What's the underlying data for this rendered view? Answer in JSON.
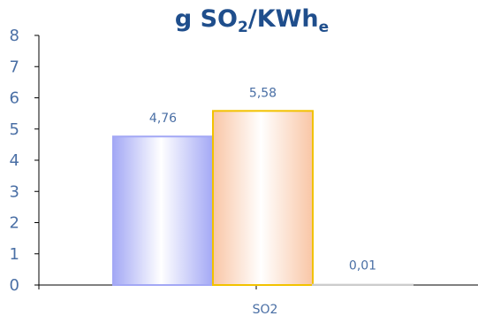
{
  "chart_data": {
    "type": "bar",
    "title": {
      "parts": [
        {
          "text": "g SO",
          "role": "normal"
        },
        {
          "text": "2",
          "role": "sub"
        },
        {
          "text": "/KWh",
          "role": "normal"
        },
        {
          "text": "e",
          "role": "sub"
        }
      ]
    },
    "categories": [
      "SO2"
    ],
    "series": [
      {
        "values": [
          4.76
        ],
        "label": "4,76",
        "colors": [
          "#a3a8f5",
          "#ffffff",
          "#a3a8f5"
        ],
        "border": "#a3a8f5"
      },
      {
        "values": [
          5.58
        ],
        "label": "5,58",
        "colors": [
          "#f9c6a6",
          "#ffffff",
          "#f9c6a6"
        ],
        "border": "#f2c200"
      },
      {
        "values": [
          0.01
        ],
        "label": "0,01",
        "colors": [
          "#cccccc",
          "#ffffff",
          "#cccccc"
        ],
        "border": "#cccccc"
      }
    ],
    "ylim": [
      0,
      8
    ],
    "yticks": [
      "0",
      "1",
      "2",
      "3",
      "4",
      "5",
      "6",
      "7",
      "8"
    ],
    "grid": false,
    "legend": "none"
  },
  "colors": {
    "title": "#1f4e8c",
    "axis_text": "#4a6fa5",
    "axis_line": "#000000"
  }
}
